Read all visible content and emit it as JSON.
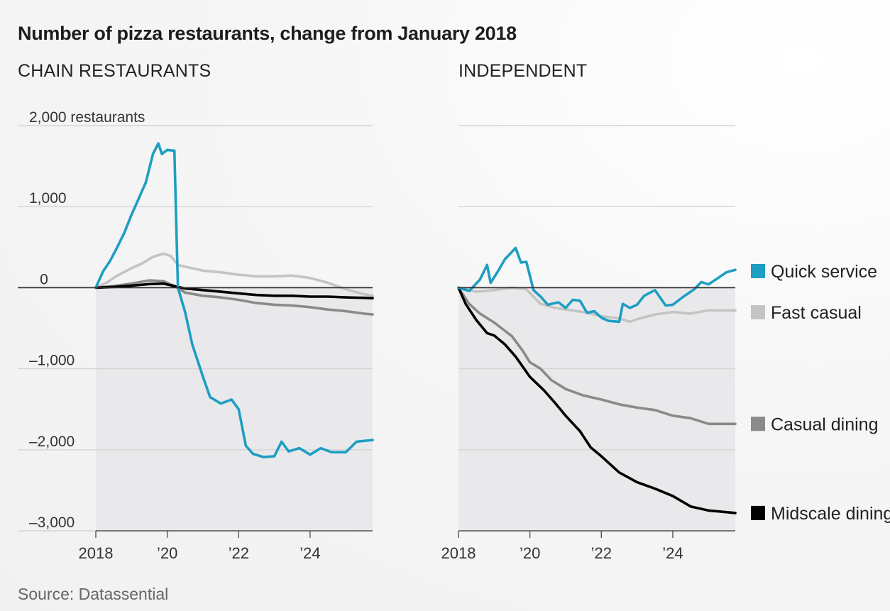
{
  "title": "Number of pizza restaurants, change from January 2018",
  "source": "Source: Datassential",
  "colors": {
    "quick_service": "#1e9ec2",
    "fast_casual": "#c4c4c4",
    "casual_dining": "#8a8a8a",
    "midscale_dining": "#000000",
    "negative_area": "#e9e9ec",
    "gridline": "#d4d4d4",
    "zero_line": "#333333"
  },
  "y_unit_label": "2,000 restaurants",
  "legend": [
    {
      "key": "quick_service",
      "label": "Quick service"
    },
    {
      "key": "fast_casual",
      "label": "Fast casual"
    },
    {
      "key": "casual_dining",
      "label": "Casual dining"
    },
    {
      "key": "midscale_dining",
      "label": "Midscale dining"
    }
  ],
  "chart_data": [
    {
      "type": "line",
      "title": "CHAIN RESTAURANTS",
      "xlabel": "",
      "ylabel": "restaurants",
      "xlim": [
        2018,
        2025.75
      ],
      "ylim": [
        -3000,
        2000
      ],
      "x_ticks": [
        2018,
        2020,
        2022,
        2024
      ],
      "x_tick_labels": [
        "2018",
        "’20",
        "’22",
        "’24"
      ],
      "y_ticks": [
        2000,
        1000,
        0,
        -1000,
        -2000,
        -3000
      ],
      "y_tick_labels": [
        "2,000 restaurants",
        "1,000",
        "0",
        "–1,000",
        "–2,000",
        "–3,000"
      ],
      "series": [
        {
          "name": "Fast casual",
          "key": "fast_casual",
          "points": [
            [
              2018,
              0
            ],
            [
              2018.3,
              60
            ],
            [
              2018.6,
              150
            ],
            [
              2019,
              240
            ],
            [
              2019.3,
              300
            ],
            [
              2019.6,
              380
            ],
            [
              2019.9,
              420
            ],
            [
              2020.1,
              390
            ],
            [
              2020.3,
              280
            ],
            [
              2020.6,
              250
            ],
            [
              2021,
              210
            ],
            [
              2021.5,
              190
            ],
            [
              2022,
              160
            ],
            [
              2022.5,
              140
            ],
            [
              2023,
              140
            ],
            [
              2023.5,
              150
            ],
            [
              2024,
              120
            ],
            [
              2024.5,
              60
            ],
            [
              2025,
              -20
            ],
            [
              2025.5,
              -80
            ],
            [
              2025.75,
              -100
            ]
          ]
        },
        {
          "name": "Casual dining",
          "key": "casual_dining",
          "points": [
            [
              2018,
              0
            ],
            [
              2018.5,
              20
            ],
            [
              2019,
              50
            ],
            [
              2019.5,
              90
            ],
            [
              2019.9,
              80
            ],
            [
              2020.2,
              20
            ],
            [
              2020.5,
              -60
            ],
            [
              2021,
              -100
            ],
            [
              2021.5,
              -120
            ],
            [
              2022,
              -150
            ],
            [
              2022.5,
              -190
            ],
            [
              2023,
              -210
            ],
            [
              2023.5,
              -220
            ],
            [
              2024,
              -240
            ],
            [
              2024.5,
              -270
            ],
            [
              2025,
              -290
            ],
            [
              2025.5,
              -320
            ],
            [
              2025.75,
              -330
            ]
          ]
        },
        {
          "name": "Midscale dining",
          "key": "midscale_dining",
          "points": [
            [
              2018,
              0
            ],
            [
              2018.5,
              10
            ],
            [
              2019,
              25
            ],
            [
              2019.5,
              45
            ],
            [
              2019.9,
              50
            ],
            [
              2020.2,
              20
            ],
            [
              2020.5,
              -10
            ],
            [
              2021,
              -30
            ],
            [
              2021.5,
              -50
            ],
            [
              2022,
              -70
            ],
            [
              2022.5,
              -90
            ],
            [
              2023,
              -100
            ],
            [
              2023.5,
              -100
            ],
            [
              2024,
              -110
            ],
            [
              2024.5,
              -110
            ],
            [
              2025,
              -120
            ],
            [
              2025.5,
              -125
            ],
            [
              2025.75,
              -130
            ]
          ]
        },
        {
          "name": "Quick service",
          "key": "quick_service",
          "points": [
            [
              2018,
              0
            ],
            [
              2018.2,
              200
            ],
            [
              2018.4,
              330
            ],
            [
              2018.6,
              500
            ],
            [
              2018.8,
              680
            ],
            [
              2019,
              900
            ],
            [
              2019.2,
              1100
            ],
            [
              2019.4,
              1300
            ],
            [
              2019.6,
              1650
            ],
            [
              2019.75,
              1780
            ],
            [
              2019.85,
              1650
            ],
            [
              2020,
              1700
            ],
            [
              2020.2,
              1690
            ],
            [
              2020.3,
              0
            ],
            [
              2020.5,
              -300
            ],
            [
              2020.7,
              -700
            ],
            [
              2021,
              -1100
            ],
            [
              2021.2,
              -1350
            ],
            [
              2021.5,
              -1430
            ],
            [
              2021.8,
              -1380
            ],
            [
              2022,
              -1500
            ],
            [
              2022.2,
              -1950
            ],
            [
              2022.4,
              -2050
            ],
            [
              2022.7,
              -2090
            ],
            [
              2023,
              -2080
            ],
            [
              2023.2,
              -1900
            ],
            [
              2023.4,
              -2020
            ],
            [
              2023.7,
              -1980
            ],
            [
              2024,
              -2060
            ],
            [
              2024.3,
              -1980
            ],
            [
              2024.6,
              -2030
            ],
            [
              2025,
              -2030
            ],
            [
              2025.3,
              -1900
            ],
            [
              2025.75,
              -1880
            ]
          ]
        }
      ]
    },
    {
      "type": "line",
      "title": "INDEPENDENT",
      "xlabel": "",
      "ylabel": "restaurants",
      "xlim": [
        2018,
        2025.75
      ],
      "ylim": [
        -3000,
        2000
      ],
      "x_ticks": [
        2018,
        2020,
        2022,
        2024
      ],
      "x_tick_labels": [
        "2018",
        "’20",
        "’22",
        "’24"
      ],
      "y_ticks": [
        2000,
        1000,
        0,
        -1000,
        -2000,
        -3000
      ],
      "series": [
        {
          "name": "Fast casual",
          "key": "fast_casual",
          "points": [
            [
              2018,
              0
            ],
            [
              2018.5,
              -50
            ],
            [
              2019,
              -30
            ],
            [
              2019.5,
              0
            ],
            [
              2019.9,
              -20
            ],
            [
              2020.3,
              -200
            ],
            [
              2020.7,
              -250
            ],
            [
              2021,
              -270
            ],
            [
              2021.5,
              -300
            ],
            [
              2022,
              -350
            ],
            [
              2022.5,
              -380
            ],
            [
              2022.8,
              -420
            ],
            [
              2023,
              -390
            ],
            [
              2023.5,
              -330
            ],
            [
              2024,
              -300
            ],
            [
              2024.5,
              -320
            ],
            [
              2025,
              -280
            ],
            [
              2025.5,
              -280
            ],
            [
              2025.75,
              -280
            ]
          ]
        },
        {
          "name": "Casual dining",
          "key": "casual_dining",
          "points": [
            [
              2018,
              0
            ],
            [
              2018.3,
              -200
            ],
            [
              2018.6,
              -320
            ],
            [
              2019,
              -430
            ],
            [
              2019.5,
              -600
            ],
            [
              2019.8,
              -780
            ],
            [
              2020,
              -920
            ],
            [
              2020.3,
              -1000
            ],
            [
              2020.6,
              -1140
            ],
            [
              2021,
              -1250
            ],
            [
              2021.5,
              -1330
            ],
            [
              2022,
              -1380
            ],
            [
              2022.5,
              -1440
            ],
            [
              2023,
              -1480
            ],
            [
              2023.5,
              -1510
            ],
            [
              2024,
              -1580
            ],
            [
              2024.5,
              -1610
            ],
            [
              2025,
              -1680
            ],
            [
              2025.5,
              -1680
            ],
            [
              2025.75,
              -1680
            ]
          ]
        },
        {
          "name": "Midscale dining",
          "key": "midscale_dining",
          "points": [
            [
              2018,
              0
            ],
            [
              2018.2,
              -200
            ],
            [
              2018.5,
              -400
            ],
            [
              2018.8,
              -560
            ],
            [
              2019,
              -590
            ],
            [
              2019.3,
              -700
            ],
            [
              2019.6,
              -850
            ],
            [
              2020,
              -1100
            ],
            [
              2020.4,
              -1270
            ],
            [
              2020.7,
              -1420
            ],
            [
              2021,
              -1580
            ],
            [
              2021.4,
              -1770
            ],
            [
              2021.7,
              -1970
            ],
            [
              2022,
              -2080
            ],
            [
              2022.5,
              -2280
            ],
            [
              2023,
              -2400
            ],
            [
              2023.5,
              -2480
            ],
            [
              2024,
              -2570
            ],
            [
              2024.5,
              -2700
            ],
            [
              2025,
              -2750
            ],
            [
              2025.5,
              -2770
            ],
            [
              2025.75,
              -2780
            ]
          ]
        },
        {
          "name": "Quick service",
          "key": "quick_service",
          "points": [
            [
              2018,
              0
            ],
            [
              2018.3,
              -40
            ],
            [
              2018.6,
              100
            ],
            [
              2018.8,
              280
            ],
            [
              2018.9,
              60
            ],
            [
              2019.1,
              200
            ],
            [
              2019.3,
              350
            ],
            [
              2019.6,
              490
            ],
            [
              2019.75,
              310
            ],
            [
              2019.9,
              320
            ],
            [
              2020.1,
              -30
            ],
            [
              2020.3,
              -110
            ],
            [
              2020.5,
              -210
            ],
            [
              2020.8,
              -180
            ],
            [
              2021,
              -250
            ],
            [
              2021.2,
              -150
            ],
            [
              2021.4,
              -160
            ],
            [
              2021.6,
              -310
            ],
            [
              2021.8,
              -290
            ],
            [
              2022,
              -370
            ],
            [
              2022.2,
              -410
            ],
            [
              2022.5,
              -420
            ],
            [
              2022.6,
              -200
            ],
            [
              2022.8,
              -250
            ],
            [
              2023,
              -210
            ],
            [
              2023.2,
              -100
            ],
            [
              2023.5,
              -30
            ],
            [
              2023.8,
              -220
            ],
            [
              2024,
              -210
            ],
            [
              2024.3,
              -110
            ],
            [
              2024.6,
              -20
            ],
            [
              2024.8,
              70
            ],
            [
              2025,
              40
            ],
            [
              2025.3,
              130
            ],
            [
              2025.5,
              190
            ],
            [
              2025.75,
              220
            ]
          ]
        }
      ]
    }
  ]
}
